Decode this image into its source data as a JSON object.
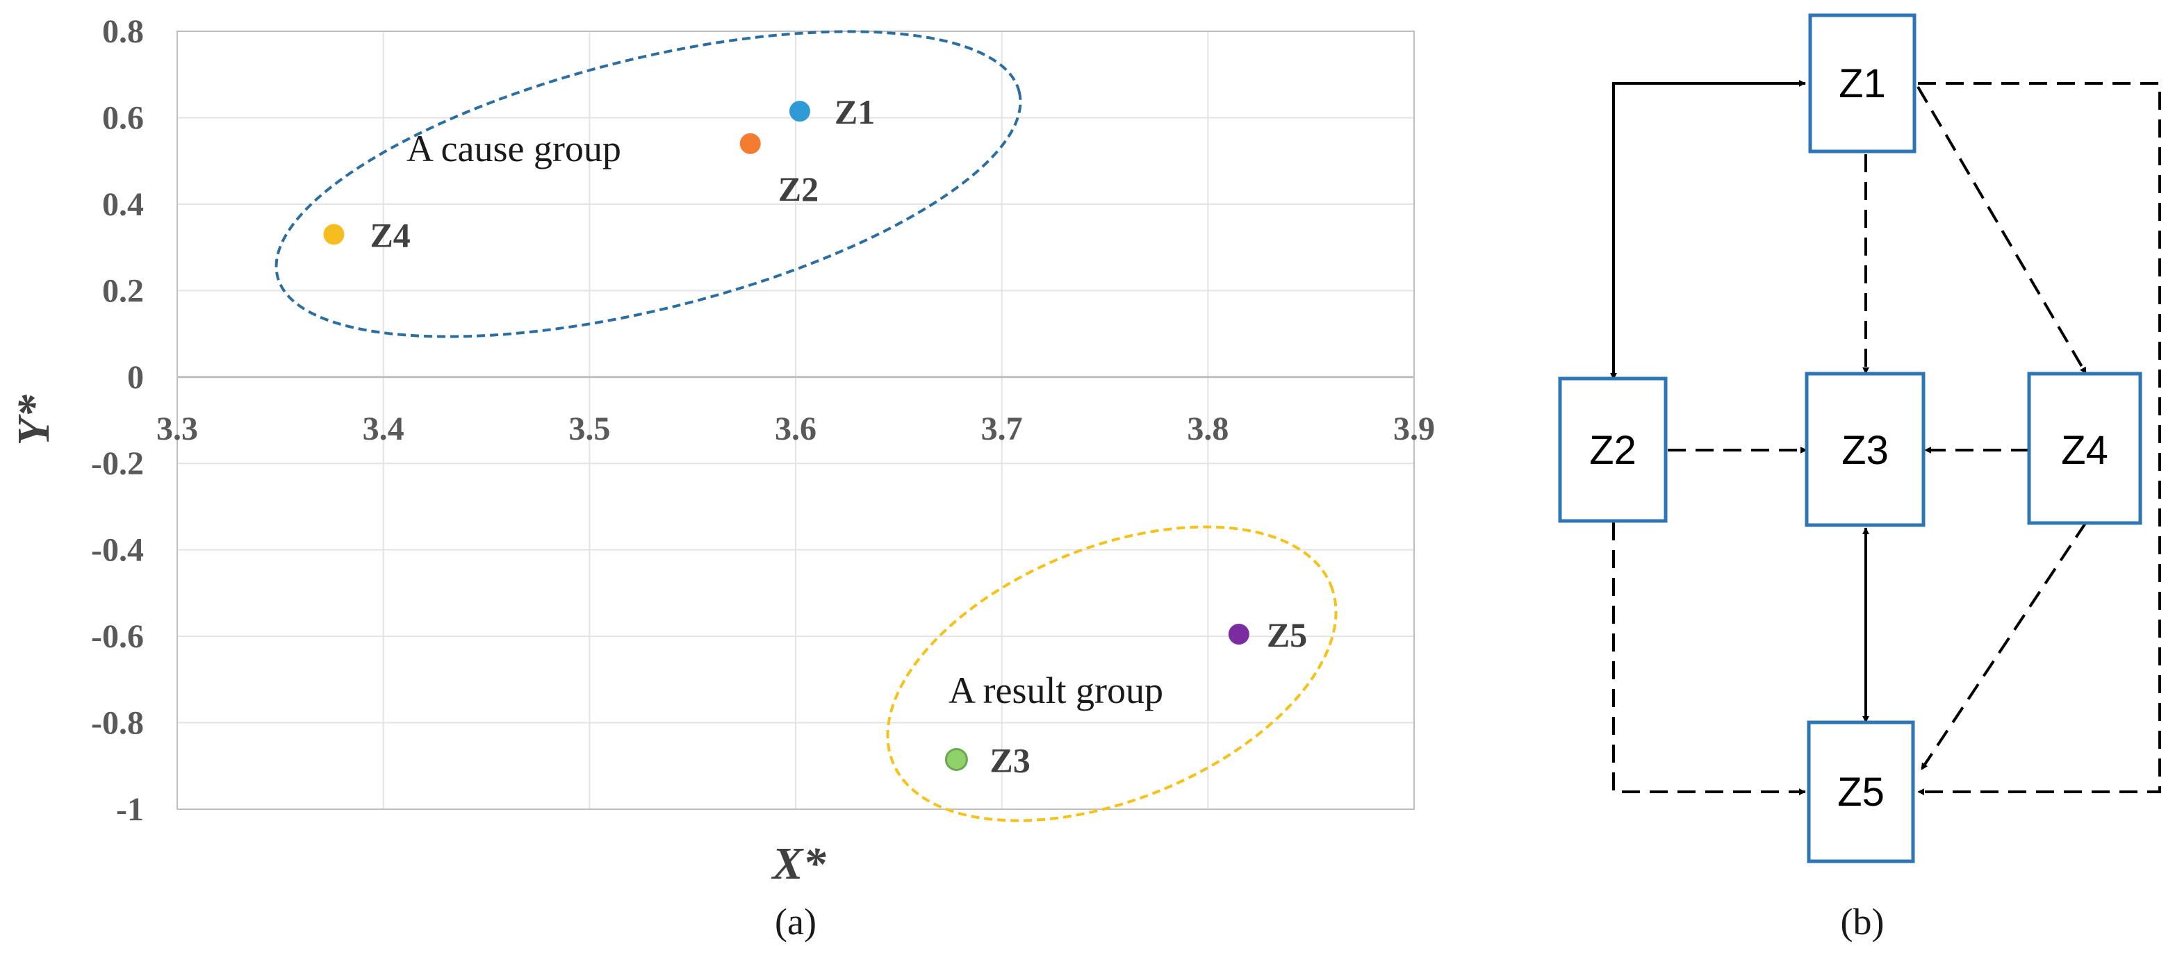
{
  "chart_data": {
    "type": "scatter",
    "xlabel": "X*",
    "ylabel": "Y*",
    "xlim": [
      3.3,
      3.9
    ],
    "ylim": [
      -1,
      0.8
    ],
    "x_ticks": [
      "3.3",
      "3.4",
      "3.5",
      "3.6",
      "3.7",
      "3.8",
      "3.9"
    ],
    "y_ticks": [
      "0.8",
      "0.6",
      "0.4",
      "0.2",
      "0",
      "-0.2",
      "-0.4",
      "-0.6",
      "-0.8",
      "-1"
    ],
    "grid": true,
    "points": [
      {
        "label": "Z1",
        "x": 3.602,
        "y": 0.615,
        "color": "#2e9bd6"
      },
      {
        "label": "Z2",
        "x": 3.578,
        "y": 0.54,
        "color": "#f47c30"
      },
      {
        "label": "Z3",
        "x": 3.678,
        "y": -0.885,
        "color": "#8fd16a"
      },
      {
        "label": "Z4",
        "x": 3.376,
        "y": 0.33,
        "color": "#f5bd1f"
      },
      {
        "label": "Z5",
        "x": 3.815,
        "y": -0.595,
        "color": "#7a2ca0"
      }
    ],
    "groups": [
      {
        "label": "A cause group",
        "color": "#2c6ea0"
      },
      {
        "label": "A result group",
        "color": "#f5c21a"
      }
    ],
    "caption": "(a)"
  },
  "diagram": {
    "caption": "(b)",
    "node_stroke": "#2e75b6",
    "nodes": [
      {
        "id": "Z1",
        "label": "Z1"
      },
      {
        "id": "Z2",
        "label": "Z2"
      },
      {
        "id": "Z3",
        "label": "Z3"
      },
      {
        "id": "Z4",
        "label": "Z4"
      },
      {
        "id": "Z5",
        "label": "Z5"
      }
    ],
    "edges": [
      {
        "from": "Z1",
        "to": "Z2",
        "style": "solid",
        "bidirectional": true
      },
      {
        "from": "Z1",
        "to": "Z3",
        "style": "dashed",
        "bidirectional": false
      },
      {
        "from": "Z1",
        "to": "Z4",
        "style": "dashed",
        "bidirectional": false
      },
      {
        "from": "Z1",
        "to": "Z5",
        "style": "dashed",
        "bidirectional": false
      },
      {
        "from": "Z2",
        "to": "Z3",
        "style": "dashed",
        "bidirectional": false
      },
      {
        "from": "Z4",
        "to": "Z3",
        "style": "dashed",
        "bidirectional": false
      },
      {
        "from": "Z3",
        "to": "Z5",
        "style": "solid",
        "bidirectional": true
      },
      {
        "from": "Z2",
        "to": "Z5",
        "style": "dashed",
        "bidirectional": false
      },
      {
        "from": "Z4",
        "to": "Z5",
        "style": "dashed",
        "bidirectional": false
      }
    ]
  }
}
